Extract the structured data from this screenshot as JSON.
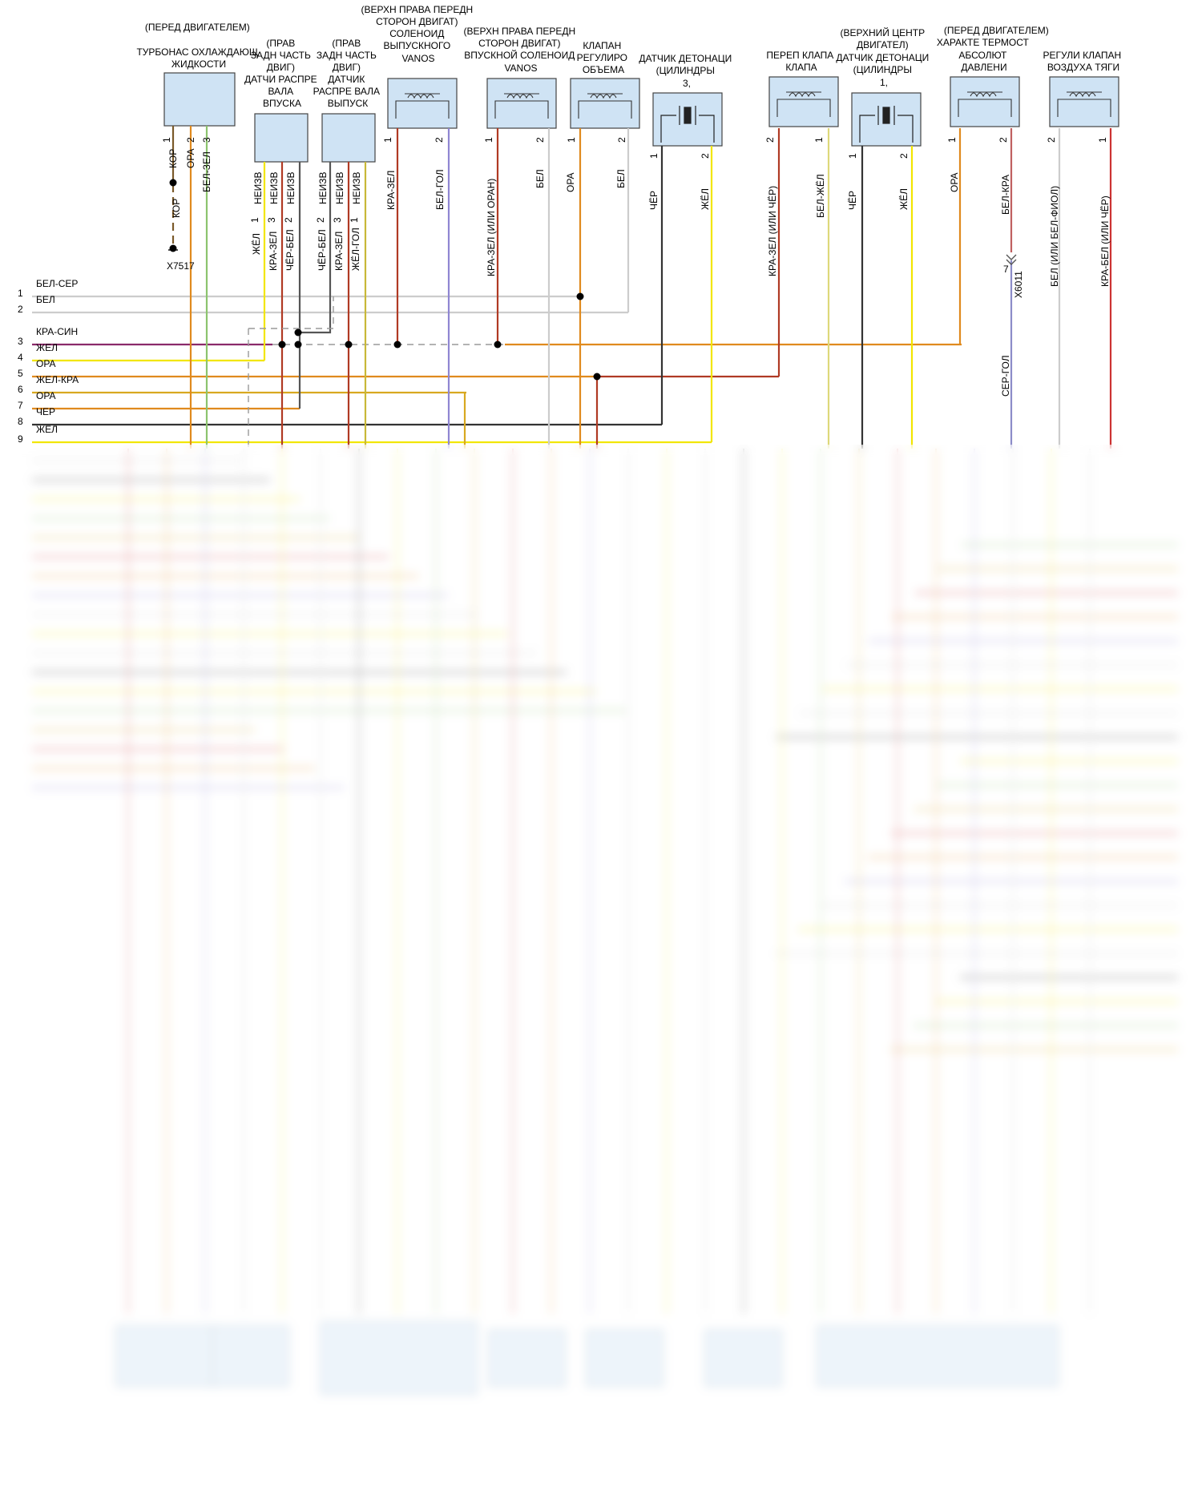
{
  "components": [
    {
      "id": "coolant_pump",
      "lines": [
        "(ПЕРЕД ДВИГАТЕЛЕМ)",
        "",
        "ТУРБОНАС ОХЛАЖДАЮЩ",
        "ЖИДКОСТИ"
      ]
    },
    {
      "id": "intake_cam_sensor",
      "lines": [
        "(ПРАВ",
        "ЗАДН ЧАСТЬ",
        "ДВИГ)",
        "ДАТЧИ РАСПРЕ",
        "ВАЛА",
        "ВПУСКА"
      ]
    },
    {
      "id": "exhaust_cam_sensor",
      "lines": [
        "(ПРАВ",
        "ЗАДН ЧАСТЬ",
        "ДВИГ)",
        "ДАТЧИК",
        "РАСПРЕ ВАЛА",
        "ВЫПУСК"
      ]
    },
    {
      "id": "exhaust_vanos",
      "lines": [
        "(ВЕРХН ПРАВА ПЕРЕДН",
        "СТОРОН ДВИГАТ)",
        "СОЛЕНОИД",
        "ВЫПУСКНОГО",
        "VANOS"
      ]
    },
    {
      "id": "intake_vanos",
      "lines": [
        "(ВЕРХН ПРАВА ПЕРЕДН",
        "СТОРОН ДВИГАТ)",
        "ВПУСКНОЙ СОЛЕНОИД",
        "VANOS"
      ]
    },
    {
      "id": "volume_valve",
      "lines": [
        "КЛАПАН",
        "РЕГУЛИРО",
        "ОБЪЕМА"
      ]
    },
    {
      "id": "knock3",
      "lines": [
        "ДАТЧИК ДЕТОНАЦИ",
        "(ЦИЛИНДРЫ",
        "3,"
      ]
    },
    {
      "id": "bypass_valve",
      "lines": [
        "ПЕРЕП КЛАПА",
        "КЛАПА"
      ]
    },
    {
      "id": "knock1",
      "lines": [
        "(ВЕРХНИЙ ЦЕНТР",
        "ДВИГАТЕЛ)",
        "ДАТЧИК ДЕТОНАЦИ",
        "(ЦИЛИНДРЫ",
        "1,"
      ]
    },
    {
      "id": "thermostat",
      "lines": [
        "(ПЕРЕД ДВИГАТЕЛЕМ)",
        "ХАРАКТЕ ТЕРМОСТ",
        "АБСОЛЮТ",
        "ДАВЛЕНИ"
      ]
    },
    {
      "id": "air_valve",
      "lines": [
        "РЕГУЛИ КЛАПАН",
        "ВОЗДУХА ТЯГИ"
      ]
    }
  ],
  "pins": {
    "coolant": [
      "1",
      "2",
      "3"
    ],
    "cam_intake": [
      "1",
      "3",
      "2"
    ],
    "cam_exhaust": [
      "2",
      "3",
      "1"
    ],
    "pair_12": [
      "1",
      "2"
    ],
    "pair_21": [
      "2",
      "1"
    ],
    "thermo_pin7": "7"
  },
  "wires": {
    "coolant": [
      "КОР",
      "ОРА",
      "БЕЛ-ЗЕЛ"
    ],
    "coolant_ext": "КОР",
    "cam_intake_shield": [
      "НЕИЗВ",
      "НЕИЗВ",
      "НЕИЗВ"
    ],
    "cam_intake": [
      "ЖЁЛ",
      "КРА-ЗЕЛ",
      "ЧЁР-БЕЛ"
    ],
    "cam_exhaust_shield": [
      "НЕИЗВ",
      "НЕИЗВ",
      "НЕИЗВ"
    ],
    "cam_exhaust": [
      "ЧЁР-БЕЛ",
      "КРА-ЗЕЛ",
      "ЖЁЛ-ГОЛ"
    ],
    "exhaust_vanos": [
      "КРА-ЗЕЛ",
      "БЕЛ-ГОЛ"
    ],
    "intake_vanos": [
      "КРА-ЗЕЛ  (ИЛИ ОРАН)",
      "БЕЛ"
    ],
    "volume_valve": [
      "ОРА",
      "БЕЛ"
    ],
    "knock3": [
      "ЧЁР",
      "ЖЁЛ"
    ],
    "bypass": [
      "КРА-ЗЕЛ  (ИЛИ ЧЁР)",
      "БЕЛ-ЖЁЛ"
    ],
    "knock1": [
      "ЧЁР",
      "ЖЁЛ"
    ],
    "thermostat": [
      "ОРА",
      "БЕЛ-КРА",
      "СЕР-ГОЛ"
    ],
    "air_valve": [
      "БЕЛ  (ИЛИ БЕЛ-ФИОЛ)",
      "КРА-БЕЛ  (ИЛИ ЧЁР)"
    ]
  },
  "connectors": {
    "ground": "X7517",
    "thermo": "X6011"
  },
  "bus": [
    {
      "num": "1",
      "label": "БЕЛ-СЕР"
    },
    {
      "num": "2",
      "label": "БЕЛ"
    },
    {
      "num": "3",
      "label": "КРА-СИН"
    },
    {
      "num": "4",
      "label": "ЖЕЛ"
    },
    {
      "num": "5",
      "label": "ОРА"
    },
    {
      "num": "6",
      "label": "ЖЕЛ-КРА"
    },
    {
      "num": "7",
      "label": "ОРА"
    },
    {
      "num": "8",
      "label": "ЧЕР"
    },
    {
      "num": "9",
      "label": "ЖЕЛ"
    }
  ],
  "colors": {
    "kor": "#7a5a2a",
    "ora": "#e08a1e",
    "bel_zel": "#8cc46e",
    "zhel": "#f2e600",
    "kra_zel": "#b03a24",
    "cher_bel": "#555555",
    "zhel_gol": "#c8b838",
    "bel_gol": "#8f86d2",
    "bel": "#cccccc",
    "cher": "#333333",
    "bel_zhel": "#ddd87a",
    "bel_kra": "#c06060",
    "ser_gol": "#8c8cc8",
    "kra_bel": "#cc3333",
    "kra_sin": "#8a2a6a",
    "zhel_kra": "#d8a820",
    "box_fill": "#cfe3f4",
    "dash": "#9a9a9a"
  }
}
